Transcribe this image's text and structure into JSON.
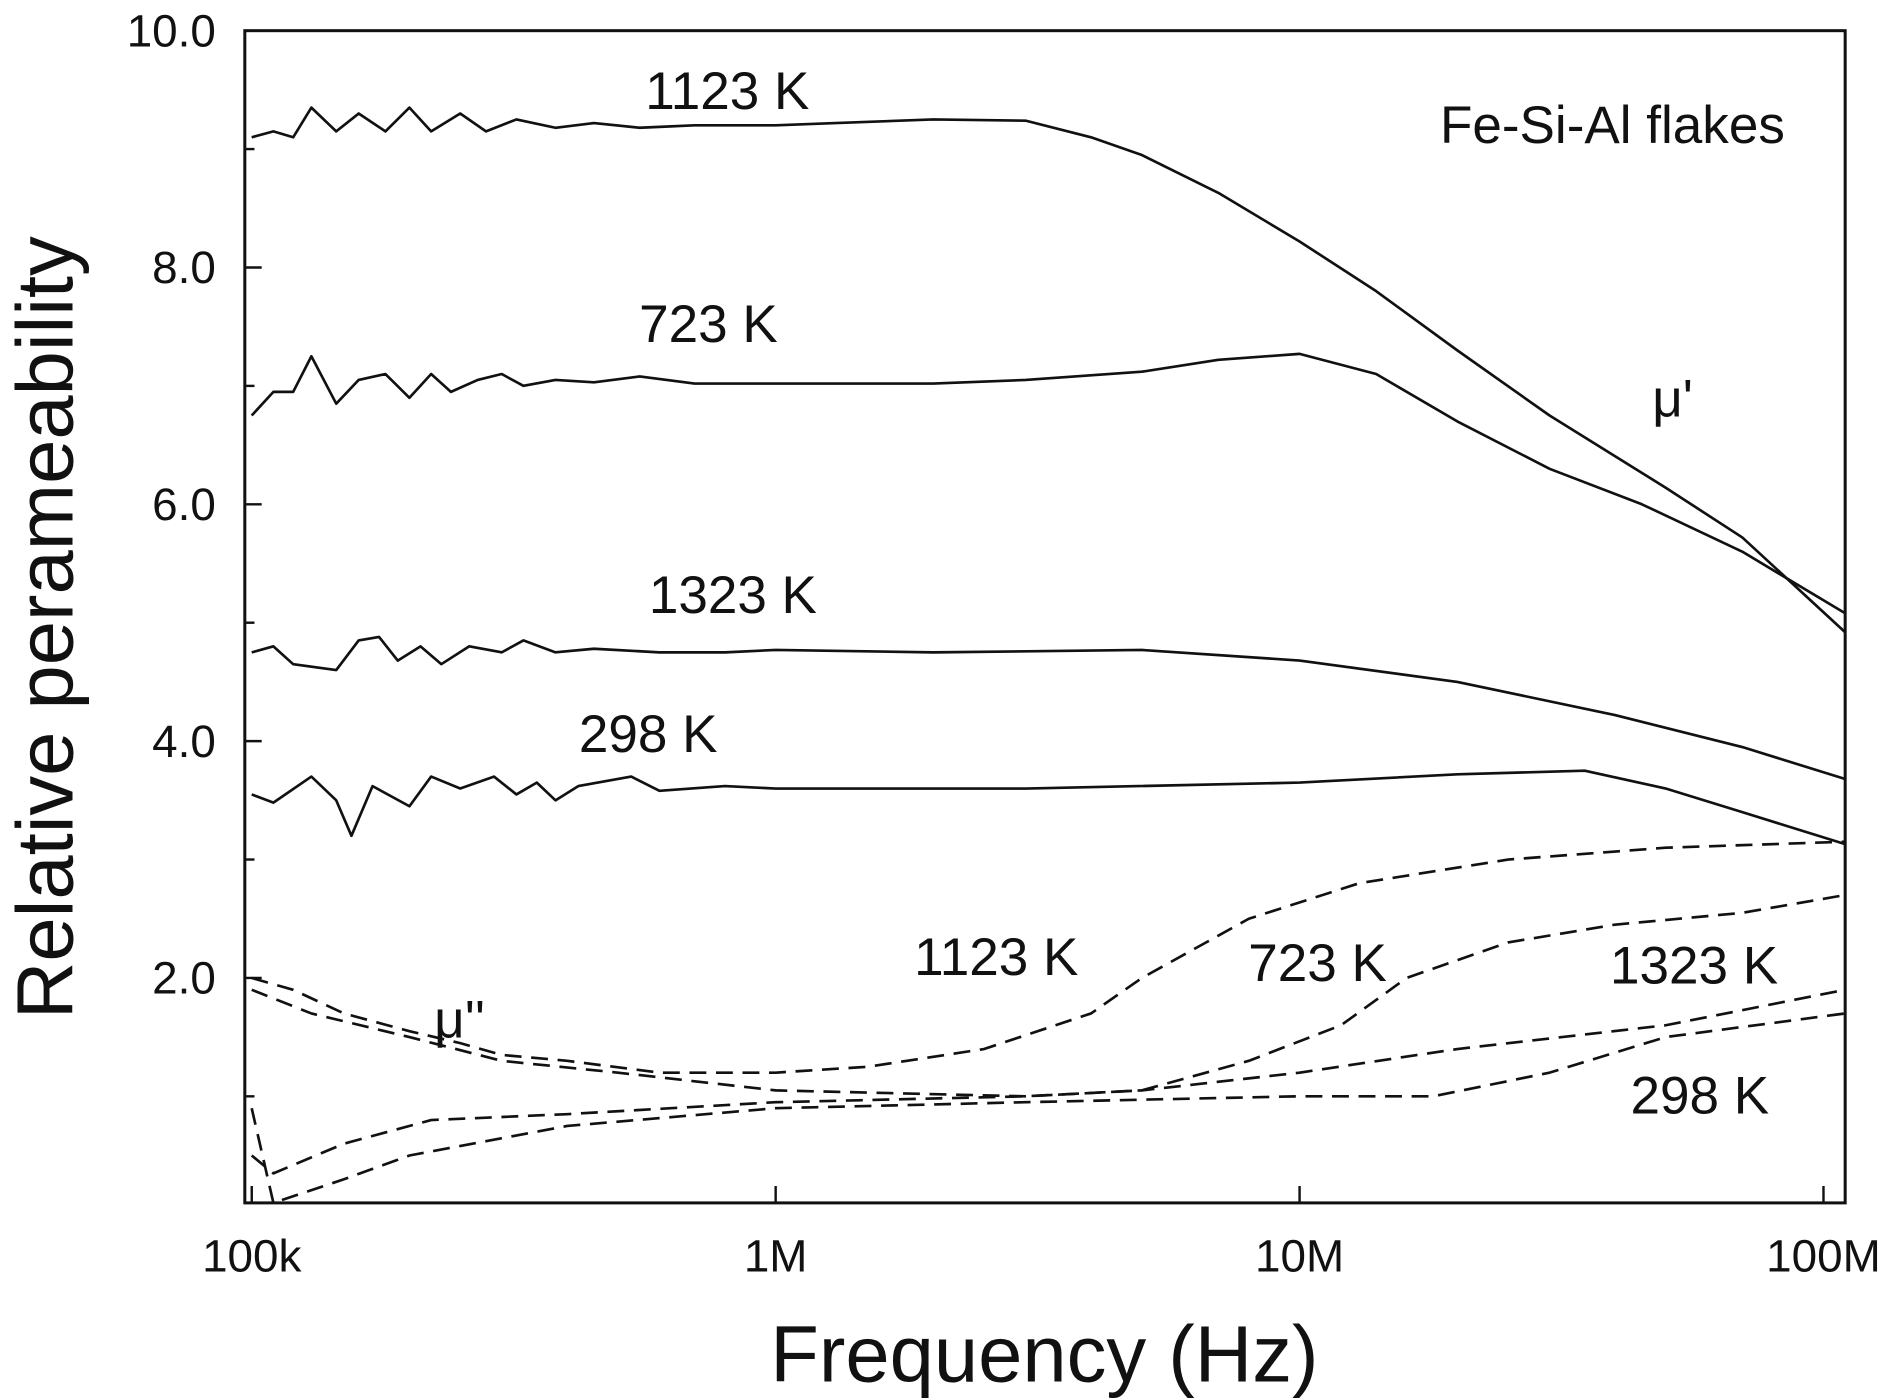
{
  "chart_data": {
    "type": "line",
    "title": "",
    "annotation_title": "Fe-Si-Al flakes",
    "xlabel": "Frequency (Hz)",
    "ylabel": "Relative perameability",
    "xscale": "log",
    "xlim": [
      97000,
      110000000
    ],
    "ylim": [
      0.1,
      10.0
    ],
    "xticks": [
      {
        "value": 100000,
        "label": "100k"
      },
      {
        "value": 1000000,
        "label": "1M"
      },
      {
        "value": 10000000,
        "label": "10M"
      },
      {
        "value": 100000000,
        "label": "100M"
      }
    ],
    "yticks": [
      {
        "value": 2.0,
        "label": "2.0"
      },
      {
        "value": 4.0,
        "label": "4.0"
      },
      {
        "value": 6.0,
        "label": "6.0"
      },
      {
        "value": 8.0,
        "label": "8.0"
      },
      {
        "value": 10.0,
        "label": "10.0"
      }
    ],
    "grid": false,
    "color": "#111111",
    "group_labels": {
      "real": "μ'",
      "imag": "μ''"
    },
    "series": [
      {
        "name": "1123 K",
        "component": "real",
        "style": "solid",
        "points": [
          [
            100000.0,
            9.1
          ],
          [
            110000.0,
            9.15
          ],
          [
            120000.0,
            9.1
          ],
          [
            130000.0,
            9.35
          ],
          [
            145000.0,
            9.15
          ],
          [
            160000.0,
            9.3
          ],
          [
            180000.0,
            9.15
          ],
          [
            200000.0,
            9.35
          ],
          [
            220000.0,
            9.15
          ],
          [
            250000.0,
            9.3
          ],
          [
            280000.0,
            9.15
          ],
          [
            320000.0,
            9.25
          ],
          [
            380000.0,
            9.18
          ],
          [
            450000.0,
            9.22
          ],
          [
            550000.0,
            9.18
          ],
          [
            700000.0,
            9.2
          ],
          [
            1000000.0,
            9.2
          ],
          [
            1300000.0,
            9.22
          ],
          [
            2000000.0,
            9.25
          ],
          [
            3000000.0,
            9.24
          ],
          [
            4000000.0,
            9.1
          ],
          [
            5000000.0,
            8.95
          ],
          [
            7000000.0,
            8.63
          ],
          [
            10000000.0,
            8.22
          ],
          [
            14000000.0,
            7.8
          ],
          [
            20000000.0,
            7.3
          ],
          [
            30000000.0,
            6.75
          ],
          [
            50000000.0,
            6.14
          ],
          [
            70000000.0,
            5.72
          ],
          [
            110000000.0,
            4.92
          ]
        ]
      },
      {
        "name": "723 K",
        "component": "real",
        "style": "solid",
        "points": [
          [
            100000.0,
            6.75
          ],
          [
            110000.0,
            6.95
          ],
          [
            120000.0,
            6.95
          ],
          [
            130000.0,
            7.25
          ],
          [
            145000.0,
            6.85
          ],
          [
            160000.0,
            7.05
          ],
          [
            180000.0,
            7.1
          ],
          [
            200000.0,
            6.9
          ],
          [
            220000.0,
            7.1
          ],
          [
            240000.0,
            6.95
          ],
          [
            270000.0,
            7.05
          ],
          [
            300000.0,
            7.1
          ],
          [
            330000.0,
            7.0
          ],
          [
            380000.0,
            7.05
          ],
          [
            450000.0,
            7.03
          ],
          [
            550000.0,
            7.08
          ],
          [
            700000.0,
            7.02
          ],
          [
            1000000.0,
            7.02
          ],
          [
            2000000.0,
            7.02
          ],
          [
            3000000.0,
            7.05
          ],
          [
            5000000.0,
            7.12
          ],
          [
            7000000.0,
            7.22
          ],
          [
            10000000.0,
            7.27
          ],
          [
            14000000.0,
            7.1
          ],
          [
            20000000.0,
            6.7
          ],
          [
            30000000.0,
            6.3
          ],
          [
            45000000.0,
            6.0
          ],
          [
            70000000.0,
            5.6
          ],
          [
            110000000.0,
            5.08
          ]
        ]
      },
      {
        "name": "1323 K",
        "component": "real",
        "style": "solid",
        "points": [
          [
            100000.0,
            4.75
          ],
          [
            110000.0,
            4.8
          ],
          [
            120000.0,
            4.65
          ],
          [
            145000.0,
            4.6
          ],
          [
            160000.0,
            4.85
          ],
          [
            175000.0,
            4.88
          ],
          [
            190000.0,
            4.68
          ],
          [
            210000.0,
            4.8
          ],
          [
            230000.0,
            4.65
          ],
          [
            260000.0,
            4.8
          ],
          [
            300000.0,
            4.75
          ],
          [
            330000.0,
            4.85
          ],
          [
            380000.0,
            4.75
          ],
          [
            450000.0,
            4.78
          ],
          [
            600000.0,
            4.75
          ],
          [
            800000.0,
            4.75
          ],
          [
            1000000.0,
            4.77
          ],
          [
            2000000.0,
            4.75
          ],
          [
            5000000.0,
            4.77
          ],
          [
            10000000.0,
            4.68
          ],
          [
            20000000.0,
            4.5
          ],
          [
            40000000.0,
            4.22
          ],
          [
            70000000.0,
            3.95
          ],
          [
            110000000.0,
            3.68
          ]
        ]
      },
      {
        "name": "298 K",
        "component": "real",
        "style": "solid",
        "points": [
          [
            100000.0,
            3.55
          ],
          [
            110000.0,
            3.48
          ],
          [
            130000.0,
            3.7
          ],
          [
            145000.0,
            3.5
          ],
          [
            155000.0,
            3.2
          ],
          [
            170000.0,
            3.62
          ],
          [
            200000.0,
            3.45
          ],
          [
            220000.0,
            3.7
          ],
          [
            250000.0,
            3.6
          ],
          [
            290000.0,
            3.7
          ],
          [
            320000.0,
            3.55
          ],
          [
            350000.0,
            3.65
          ],
          [
            380000.0,
            3.5
          ],
          [
            420000.0,
            3.62
          ],
          [
            530000.0,
            3.7
          ],
          [
            600000.0,
            3.58
          ],
          [
            800000.0,
            3.62
          ],
          [
            1000000.0,
            3.6
          ],
          [
            3000000.0,
            3.6
          ],
          [
            10000000.0,
            3.65
          ],
          [
            20000000.0,
            3.72
          ],
          [
            35000000.0,
            3.75
          ],
          [
            50000000.0,
            3.6
          ],
          [
            70000000.0,
            3.4
          ],
          [
            110000000.0,
            3.13
          ]
        ]
      },
      {
        "name": "1123 K",
        "component": "imag",
        "style": "dashed",
        "points": [
          [
            100000.0,
            2.0
          ],
          [
            120000.0,
            1.9
          ],
          [
            150000.0,
            1.7
          ],
          [
            200000.0,
            1.55
          ],
          [
            250000.0,
            1.45
          ],
          [
            300000.0,
            1.35
          ],
          [
            400000.0,
            1.3
          ],
          [
            600000.0,
            1.2
          ],
          [
            1000000.0,
            1.2
          ],
          [
            1500000.0,
            1.25
          ],
          [
            2500000.0,
            1.4
          ],
          [
            4000000.0,
            1.7
          ],
          [
            5000000.0,
            2.0
          ],
          [
            8000000.0,
            2.5
          ],
          [
            13000000.0,
            2.8
          ],
          [
            25000000.0,
            3.0
          ],
          [
            50000000.0,
            3.1
          ],
          [
            110000000.0,
            3.15
          ]
        ]
      },
      {
        "name": "723 K",
        "component": "imag",
        "style": "dashed",
        "points": [
          [
            100000.0,
            1.9
          ],
          [
            130000.0,
            1.7
          ],
          [
            200000.0,
            1.5
          ],
          [
            300000.0,
            1.3
          ],
          [
            500000.0,
            1.2
          ],
          [
            1000000.0,
            1.05
          ],
          [
            3000000.0,
            1.0
          ],
          [
            5000000.0,
            1.05
          ],
          [
            8000000.0,
            1.3
          ],
          [
            12000000.0,
            1.6
          ],
          [
            16000000.0,
            2.0
          ],
          [
            25000000.0,
            2.3
          ],
          [
            40000000.0,
            2.45
          ],
          [
            70000000.0,
            2.55
          ],
          [
            110000000.0,
            2.7
          ]
        ]
      },
      {
        "name": "1323 K",
        "component": "imag",
        "style": "dashed",
        "points": [
          [
            100000.0,
            0.5
          ],
          [
            110000.0,
            0.35
          ],
          [
            150000.0,
            0.6
          ],
          [
            220000.0,
            0.8
          ],
          [
            400000.0,
            0.85
          ],
          [
            1000000.0,
            0.95
          ],
          [
            3000000.0,
            1.0
          ],
          [
            5000000.0,
            1.05
          ],
          [
            10000000.0,
            1.2
          ],
          [
            20000000.0,
            1.4
          ],
          [
            50000000.0,
            1.6
          ],
          [
            110000000.0,
            1.9
          ]
        ]
      },
      {
        "name": "298 K",
        "component": "imag",
        "style": "dashed",
        "points": [
          [
            100000.0,
            0.9
          ],
          [
            110000.0,
            0.1
          ],
          [
            150000.0,
            0.3
          ],
          [
            200000.0,
            0.5
          ],
          [
            400000.0,
            0.75
          ],
          [
            1000000.0,
            0.9
          ],
          [
            3000000.0,
            0.95
          ],
          [
            10000000.0,
            1.0
          ],
          [
            18000000.0,
            1.0
          ],
          [
            30000000.0,
            1.2
          ],
          [
            50000000.0,
            1.5
          ],
          [
            110000000.0,
            1.7
          ]
        ]
      }
    ]
  }
}
